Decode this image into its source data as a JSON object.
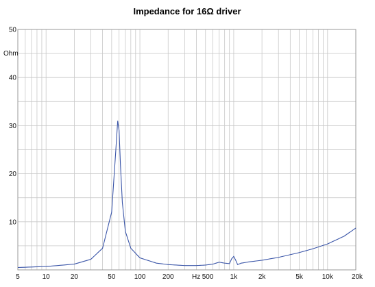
{
  "chart_data": {
    "type": "line",
    "title": "Impedance for 16Ω driver",
    "xlabel": "Hz",
    "ylabel": "Ohm",
    "x_scale": "log",
    "xlim": [
      5,
      20000
    ],
    "ylim": [
      0,
      50
    ],
    "grid": true,
    "x_ticks": [
      5,
      10,
      20,
      50,
      100,
      200,
      500,
      1000,
      2000,
      5000,
      10000,
      20000
    ],
    "x_tick_labels": [
      "5",
      "10",
      "20",
      "50",
      "100",
      "200",
      "500",
      "1k",
      "2k",
      "5k",
      "10k",
      "20k"
    ],
    "y_ticks": [
      10,
      20,
      30,
      40,
      50
    ],
    "y_tick_labels": [
      "10",
      "20",
      "30",
      "40",
      "50"
    ],
    "series": [
      {
        "x": [
          5,
          10,
          20,
          30,
          40,
          50,
          55,
          58,
          60,
          62,
          65,
          70,
          80,
          100,
          150,
          200,
          300,
          400,
          500,
          600,
          700,
          800,
          900,
          950,
          1000,
          1050,
          1100,
          1200,
          1500,
          2000,
          3000,
          5000,
          7000,
          10000,
          15000,
          20000
        ],
        "values": [
          0.5,
          0.7,
          1.2,
          2.2,
          4.5,
          12.0,
          24.0,
          31.0,
          29.0,
          22.0,
          14.0,
          8.0,
          4.5,
          2.5,
          1.4,
          1.1,
          0.9,
          0.9,
          1.0,
          1.2,
          1.6,
          1.4,
          1.3,
          2.3,
          2.8,
          2.0,
          1.1,
          1.4,
          1.7,
          2.0,
          2.6,
          3.6,
          4.4,
          5.4,
          7.0,
          8.7
        ]
      }
    ]
  }
}
